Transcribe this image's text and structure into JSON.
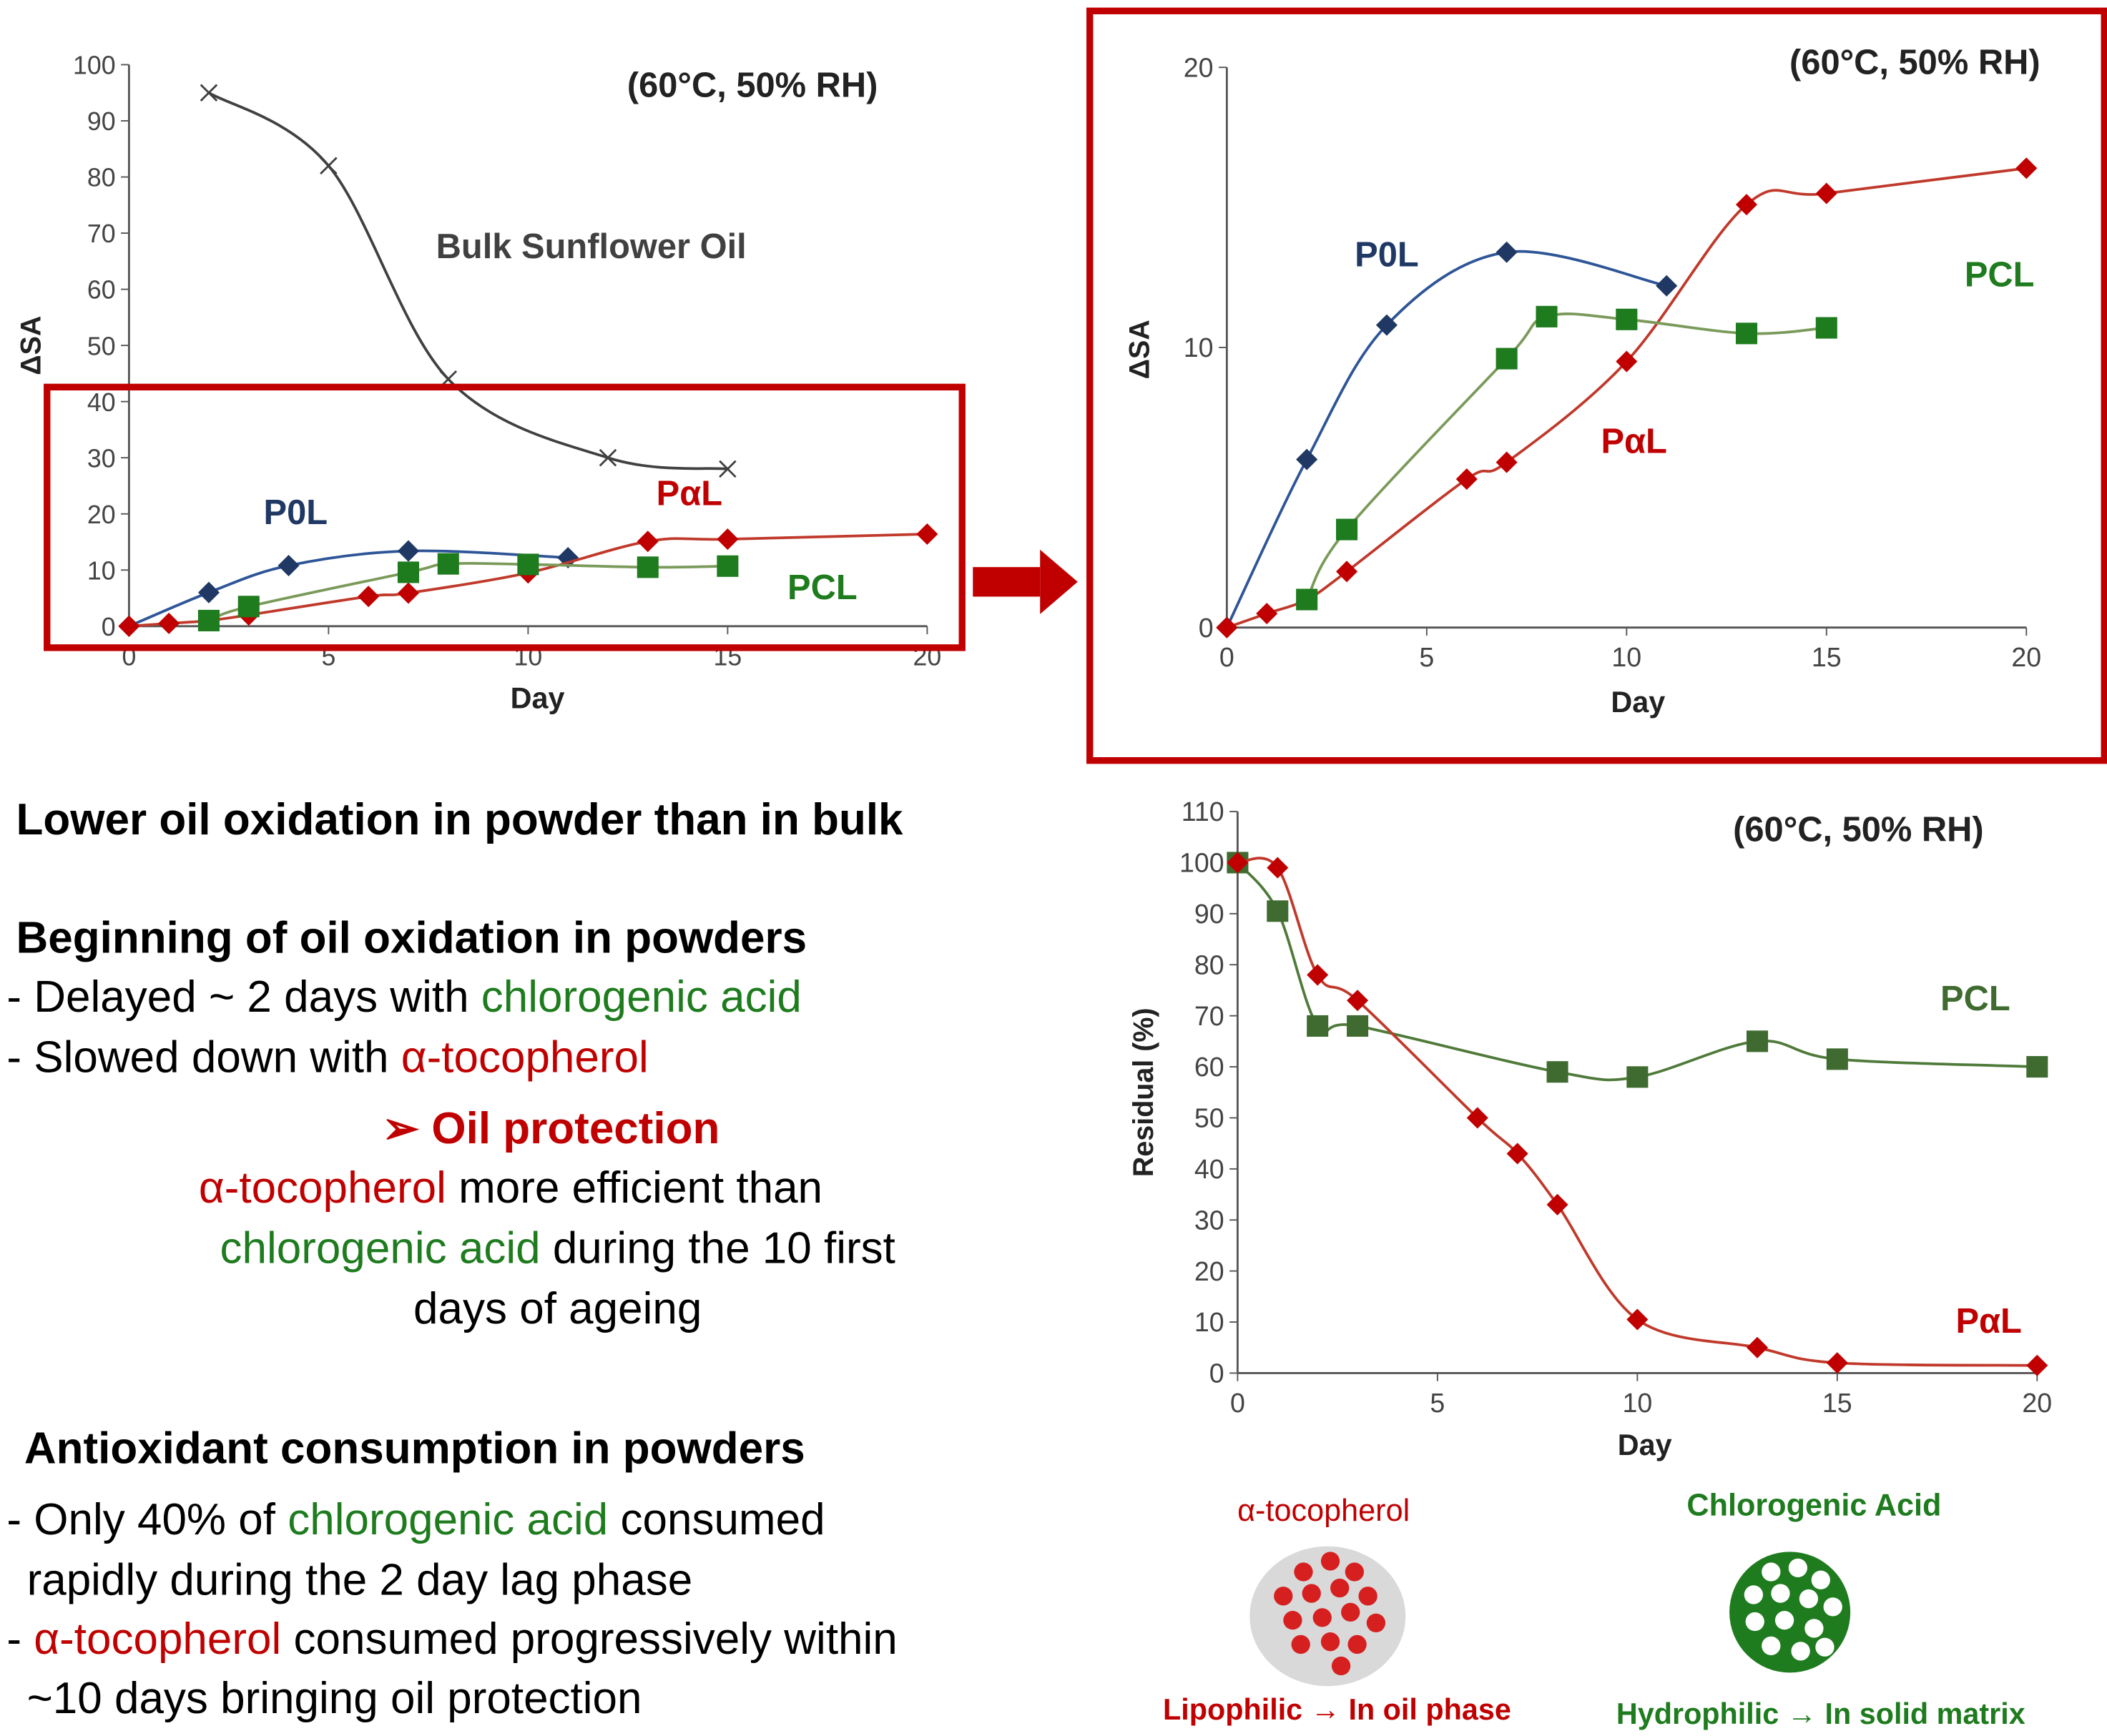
{
  "chart_data": [
    {
      "type": "scatter",
      "annotation": "(60°C, 50% RH)",
      "xlabel": "Day",
      "ylabel": "ΔSA",
      "xlim": [
        0,
        20
      ],
      "xticks": [
        0,
        5,
        10,
        15,
        20
      ],
      "ylim": [
        0,
        100
      ],
      "yticks": [
        0,
        10,
        20,
        30,
        40,
        50,
        60,
        70,
        80,
        90,
        100
      ],
      "series": [
        {
          "name": "Bulk Sunflower Oil",
          "color": "#404040",
          "line_color": "#404040",
          "marker": "cross",
          "x": [
            2,
            5,
            8,
            12,
            15
          ],
          "values": [
            95,
            82,
            44,
            30,
            28
          ]
        },
        {
          "name": "P0L",
          "color": "#1f3864",
          "line_color": "#2e5597",
          "marker": "diamond",
          "x": [
            0,
            2,
            4,
            7,
            11
          ],
          "values": [
            0,
            6,
            10.8,
            13.4,
            12.2
          ]
        },
        {
          "name": "PαL",
          "color": "#c00000",
          "line_color": "#c0392b",
          "marker": "diamond",
          "x": [
            0,
            1,
            2,
            3,
            6,
            7,
            10,
            13,
            15,
            20
          ],
          "values": [
            0,
            0.5,
            1,
            2,
            5.3,
            5.9,
            9.5,
            15.1,
            15.5,
            16.4
          ]
        },
        {
          "name": "PCL",
          "color": "#1e7b1e",
          "line_color": "#7a9a5a",
          "marker": "square",
          "x": [
            2,
            3,
            7,
            8,
            10,
            13,
            15
          ],
          "values": [
            1,
            3.5,
            9.6,
            11.1,
            11,
            10.5,
            10.7
          ]
        }
      ]
    },
    {
      "type": "scatter",
      "annotation": "(60°C, 50% RH)",
      "xlabel": "Day",
      "ylabel": "ΔSA",
      "xlim": [
        0,
        20
      ],
      "xticks": [
        0,
        5,
        10,
        15,
        20
      ],
      "ylim": [
        0,
        20
      ],
      "yticks": [
        0,
        10,
        20
      ],
      "series": [
        {
          "name": "P0L",
          "color": "#1f3864",
          "line_color": "#2e5597",
          "marker": "diamond",
          "x": [
            0,
            2,
            4,
            7,
            11
          ],
          "values": [
            0,
            6,
            10.8,
            13.4,
            12.2
          ]
        },
        {
          "name": "PαL",
          "color": "#c00000",
          "line_color": "#c0392b",
          "marker": "diamond",
          "x": [
            0,
            1,
            2,
            3,
            6,
            7,
            10,
            13,
            15,
            20
          ],
          "values": [
            0,
            0.5,
            1,
            2,
            5.3,
            5.9,
            9.5,
            15.1,
            15.5,
            16.4
          ]
        },
        {
          "name": "PCL",
          "color": "#1e7b1e",
          "line_color": "#7a9a5a",
          "marker": "square",
          "x": [
            2,
            3,
            7,
            8,
            10,
            13,
            15
          ],
          "values": [
            1,
            3.5,
            9.6,
            11.1,
            11,
            10.5,
            10.7
          ]
        }
      ]
    },
    {
      "type": "scatter",
      "annotation": "(60°C, 50% RH)",
      "xlabel": "Day",
      "ylabel": "Residual (%)",
      "xlim": [
        0,
        20
      ],
      "xticks": [
        0,
        5,
        10,
        15,
        20
      ],
      "ylim": [
        0,
        110
      ],
      "yticks": [
        0,
        10,
        20,
        30,
        40,
        50,
        60,
        70,
        80,
        90,
        100,
        110
      ],
      "series": [
        {
          "name": "PCL",
          "color": "#3f6b30",
          "line_color": "#4f7a3a",
          "marker": "square",
          "x": [
            0,
            1,
            2,
            3,
            8,
            10,
            13,
            15,
            20
          ],
          "values": [
            100,
            90.5,
            68,
            68,
            59,
            58,
            65,
            61.5,
            60
          ]
        },
        {
          "name": "PαL",
          "color": "#c00000",
          "line_color": "#c0392b",
          "marker": "diamond",
          "x": [
            0,
            1,
            2,
            3,
            6,
            7,
            8,
            10,
            13,
            15,
            20
          ],
          "values": [
            100,
            99,
            78,
            73,
            50,
            43,
            33,
            10.5,
            5,
            2,
            1.5
          ]
        }
      ]
    }
  ],
  "notes": [
    {
      "bold": true,
      "segments": [
        {
          "text": "Lower oil oxidation in powder than in bulk",
          "color": "#000000"
        }
      ]
    },
    {
      "bold": true,
      "segments": [
        {
          "text": "Beginning of oil oxidation in powders",
          "color": "#000000"
        }
      ]
    },
    {
      "segments": [
        {
          "text": "- Delayed ~ 2 days with ",
          "color": "#000000"
        },
        {
          "text": "chlorogenic acid",
          "color": "#1e7b1e"
        }
      ]
    },
    {
      "segments": [
        {
          "text": "- Slowed down with ",
          "color": "#000000"
        },
        {
          "text": "α-tocopherol",
          "color": "#c00000"
        }
      ]
    },
    {
      "bold": true,
      "segments": [
        {
          "text": "➢ Oil protection",
          "color": "#c00000"
        }
      ]
    },
    {
      "segments": [
        {
          "text": "α-tocopherol",
          "color": "#c00000"
        },
        {
          "text": " more efficient than",
          "color": "#000000"
        }
      ]
    },
    {
      "segments": [
        {
          "text": "chlorogenic acid",
          "color": "#1e7b1e"
        },
        {
          "text": " during the 10 first",
          "color": "#000000"
        }
      ]
    },
    {
      "segments": [
        {
          "text": "days of ageing",
          "color": "#000000"
        }
      ]
    },
    {
      "bold": true,
      "segments": [
        {
          "text": "Antioxidant consumption in powders",
          "color": "#000000"
        }
      ]
    },
    {
      "segments": [
        {
          "text": "- Only 40% of ",
          "color": "#000000"
        },
        {
          "text": "chlorogenic acid",
          "color": "#1e7b1e"
        },
        {
          "text": " consumed",
          "color": "#000000"
        }
      ]
    },
    {
      "segments": [
        {
          "text": "rapidly during the 2 day lag phase",
          "color": "#000000"
        }
      ]
    },
    {
      "segments": [
        {
          "text": "- ",
          "color": "#000000"
        },
        {
          "text": "α-tocopherol",
          "color": "#c00000"
        },
        {
          "text": " consumed progressively within",
          "color": "#000000"
        }
      ]
    },
    {
      "segments": [
        {
          "text": "~10 days bringing oil protection",
          "color": "#000000"
        }
      ]
    }
  ],
  "illustrations": [
    {
      "title": "α-tocopherol",
      "caption": "Lipophilic → In oil phase",
      "color": "#c00000"
    },
    {
      "title": "Chlorogenic Acid",
      "caption": "Hydrophilic → In solid matrix",
      "color": "#1e7b1e"
    }
  ]
}
